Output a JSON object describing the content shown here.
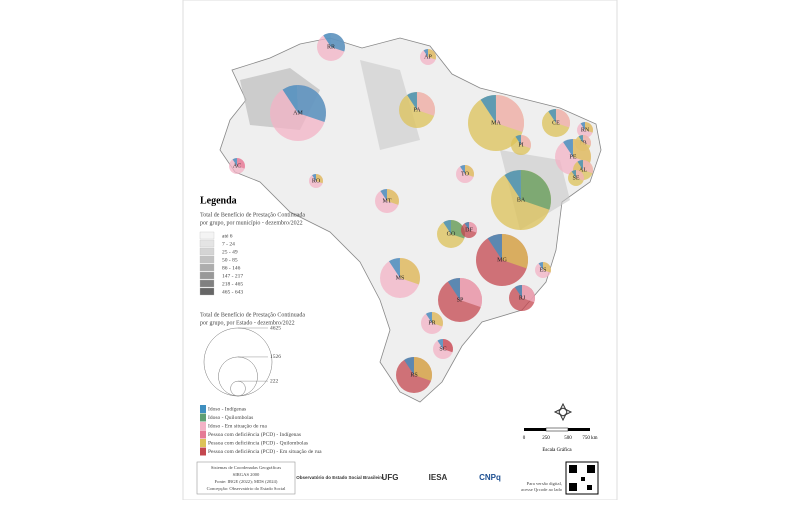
{
  "map": {
    "states": [
      "RR",
      "AP",
      "AM",
      "PA",
      "MA",
      "CE",
      "RN",
      "PB",
      "PE",
      "AL",
      "SE",
      "PI",
      "AC",
      "RO",
      "TO",
      "BA",
      "MT",
      "GO",
      "DF",
      "MG",
      "ES",
      "MS",
      "SP",
      "RJ",
      "PR",
      "SC",
      "RS"
    ],
    "legend": {
      "title": "Legenda",
      "choropleth_title": [
        "Total de Benefício de Prestação Continuada",
        "por grupo, por município - dezembro/2022"
      ],
      "classes": [
        {
          "label": "até 6",
          "color": "#f4f4f4"
        },
        {
          "label": "7 - 24",
          "color": "#e4e4e4"
        },
        {
          "label": "25 - 49",
          "color": "#d4d4d4"
        },
        {
          "label": "50 - 85",
          "color": "#c2c2c2"
        },
        {
          "label": "86 - 146",
          "color": "#adadad"
        },
        {
          "label": "147 - 217",
          "color": "#989898"
        },
        {
          "label": "218 - 465",
          "color": "#808080"
        },
        {
          "label": "465 - 643",
          "color": "#666666"
        }
      ],
      "size_title": [
        "Total de Benefício de Prestação Continuada",
        "por grupo, por Estado - dezembro/2022"
      ],
      "sizes": [
        4625,
        1526,
        222
      ],
      "groups": [
        {
          "label": "Idoso - Indígenas",
          "color": "#3f8fbf"
        },
        {
          "label": "Idoso - Quilombolas",
          "color": "#5f9f72"
        },
        {
          "label": "Idoso - Em situação de rua",
          "color": "#f3b3c6"
        },
        {
          "label": "Pessoa com deficiência (PCD) - Indígenas",
          "color": "#e57a95"
        },
        {
          "label": "Pessoa com deficiência (PCD) - Quilombolas",
          "color": "#dcc258"
        },
        {
          "label": "Pessoa com deficiência (PCD) - Em situação de rua",
          "color": "#c4474f"
        }
      ]
    },
    "scale": {
      "ticks": [
        "0",
        "250",
        "500",
        "750 km"
      ],
      "label": "Escala Gráfica"
    },
    "footer": {
      "lines": [
        "Sistemas de Coordenadas Geográficas",
        "SIRGAS 2000",
        "Fonte: IBGE (2022); MDS (2024)",
        "Concepção: Observatório do Estado Social"
      ],
      "logos": [
        "Observatório do Estado Social Brasileiro",
        "UFG",
        "IESA",
        "CNPq"
      ],
      "qr_note": [
        "Para versão digital,",
        "acesse Qrcode ao lado"
      ]
    }
  }
}
